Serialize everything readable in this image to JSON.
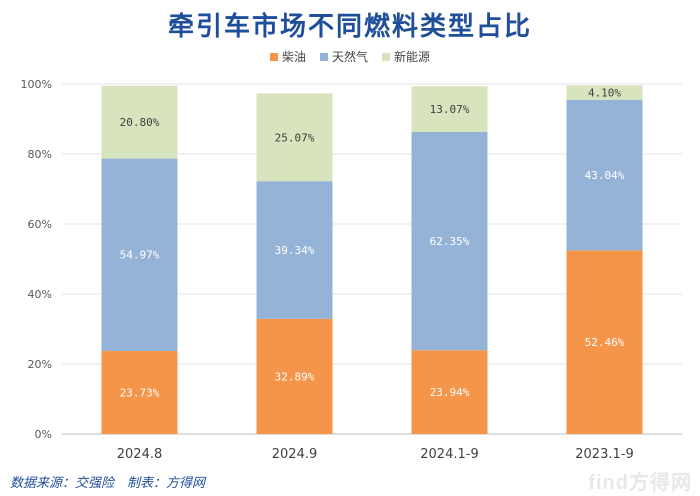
{
  "chart_data": {
    "type": "bar",
    "stacked": true,
    "title": "牵引车市场不同燃料类型占比",
    "categories": [
      "2024.8",
      "2024.9",
      "2024.1-9",
      "2023.1-9"
    ],
    "series": [
      {
        "name": "柴油",
        "color": "#f5954a",
        "values": [
          23.73,
          32.89,
          23.94,
          52.46
        ],
        "labels": [
          "23.73%",
          "32.89%",
          "23.94%",
          "52.46%"
        ]
      },
      {
        "name": "天然气",
        "color": "#95b3d7",
        "values": [
          54.97,
          39.34,
          62.35,
          43.04
        ],
        "labels": [
          "54.97%",
          "39.34%",
          "62.35%",
          "43.04%"
        ]
      },
      {
        "name": "新能源",
        "color": "#d7e4bd",
        "values": [
          20.8,
          25.07,
          13.07,
          4.1
        ],
        "labels": [
          "20.80%",
          "25.07%",
          "13.07%",
          "4.10%"
        ]
      }
    ],
    "y_ticks": [
      "0%",
      "20%",
      "40%",
      "60%",
      "80%",
      "100%"
    ],
    "ylim": [
      0,
      100
    ],
    "grid": true,
    "legend_position": "top"
  },
  "footer": {
    "source": "数据来源：交强险　制表：方得网"
  },
  "brand": "find方得网"
}
